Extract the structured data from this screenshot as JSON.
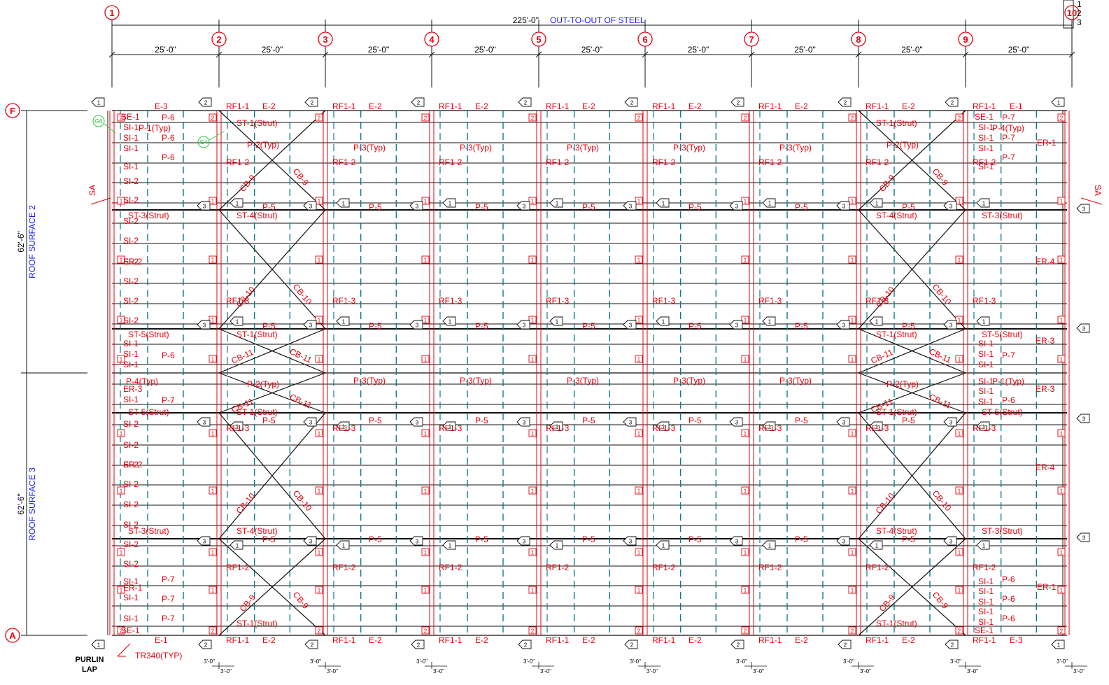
{
  "overall": {
    "dimension": "225'-0\"",
    "note": "OUT-TO-OUT OF STEEL"
  },
  "bays": [
    "25'-0\"",
    "25'-0\"",
    "25'-0\"",
    "25'-0\"",
    "25'-0\"",
    "25'-0\"",
    "25'-0\"",
    "25'-0\"",
    "25'-0\""
  ],
  "gridlines": [
    "1",
    "2",
    "3",
    "4",
    "5",
    "6",
    "7",
    "8",
    "9",
    "10"
  ],
  "rows": {
    "top": "F",
    "bottom": "A"
  },
  "revision_marks": [
    "1",
    "2",
    "3"
  ],
  "surfaces": [
    {
      "name": "ROOF SURFACE 2",
      "dimension": "62'-6\""
    },
    {
      "name": "ROOF SURFACE 3",
      "dimension": "62'-6\""
    }
  ],
  "section_mark": "SA",
  "purlin_lap": {
    "line1": "PURLIN",
    "line2": "LAP"
  },
  "bottom_note": "TR340(TYP)",
  "lap_dim": "3'-0\"",
  "members": {
    "rafter_top": "RF1-1",
    "rafter_2": "RF1-2",
    "rafter_3": "RF1-3",
    "eave": [
      "E-1",
      "E-2",
      "E-3"
    ],
    "purlins": [
      "P-1(Typ)",
      "P-2(Typ)",
      "P-3(Typ)",
      "P-4(Typ)",
      "P-5",
      "P-6",
      "P-7"
    ],
    "struts": [
      "ST-1(Strut)",
      "ST-3(Strut)",
      "ST-4(Strut)",
      "ST-5(Strut)"
    ],
    "braces": [
      "CB-9",
      "CB-10",
      "CB-11"
    ],
    "endwall": [
      "ER-1",
      "ER-2",
      "ER-3",
      "ER-4"
    ],
    "girts": [
      "SE-1",
      "SI-1",
      "SI-2"
    ],
    "tags": [
      "G6",
      "G4"
    ],
    "boxes": [
      "1",
      "2",
      "3"
    ]
  }
}
